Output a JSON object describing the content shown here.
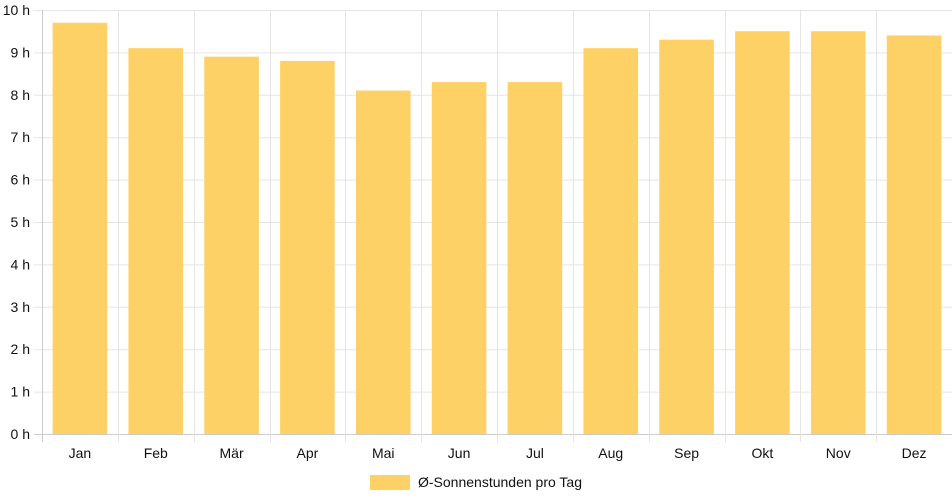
{
  "colors": {
    "bar": "#fdd166",
    "grid": "#e5e5e5",
    "axis": "#cccccc",
    "text": "#111111"
  },
  "chart_data": {
    "type": "bar",
    "categories": [
      "Jan",
      "Feb",
      "Mär",
      "Apr",
      "Mai",
      "Jun",
      "Jul",
      "Aug",
      "Sep",
      "Okt",
      "Nov",
      "Dez"
    ],
    "series": [
      {
        "name": "Ø-Sonnenstunden pro Tag",
        "values": [
          9.7,
          9.1,
          8.9,
          8.8,
          8.1,
          8.3,
          8.3,
          9.1,
          9.3,
          9.5,
          9.5,
          9.4
        ]
      }
    ],
    "ylim": [
      0,
      10
    ],
    "yticks": [
      "0 h",
      "1 h",
      "2 h",
      "3 h",
      "4 h",
      "5 h",
      "6 h",
      "7 h",
      "8 h",
      "9 h",
      "10 h"
    ],
    "grid": true,
    "legend_position": "bottom"
  }
}
